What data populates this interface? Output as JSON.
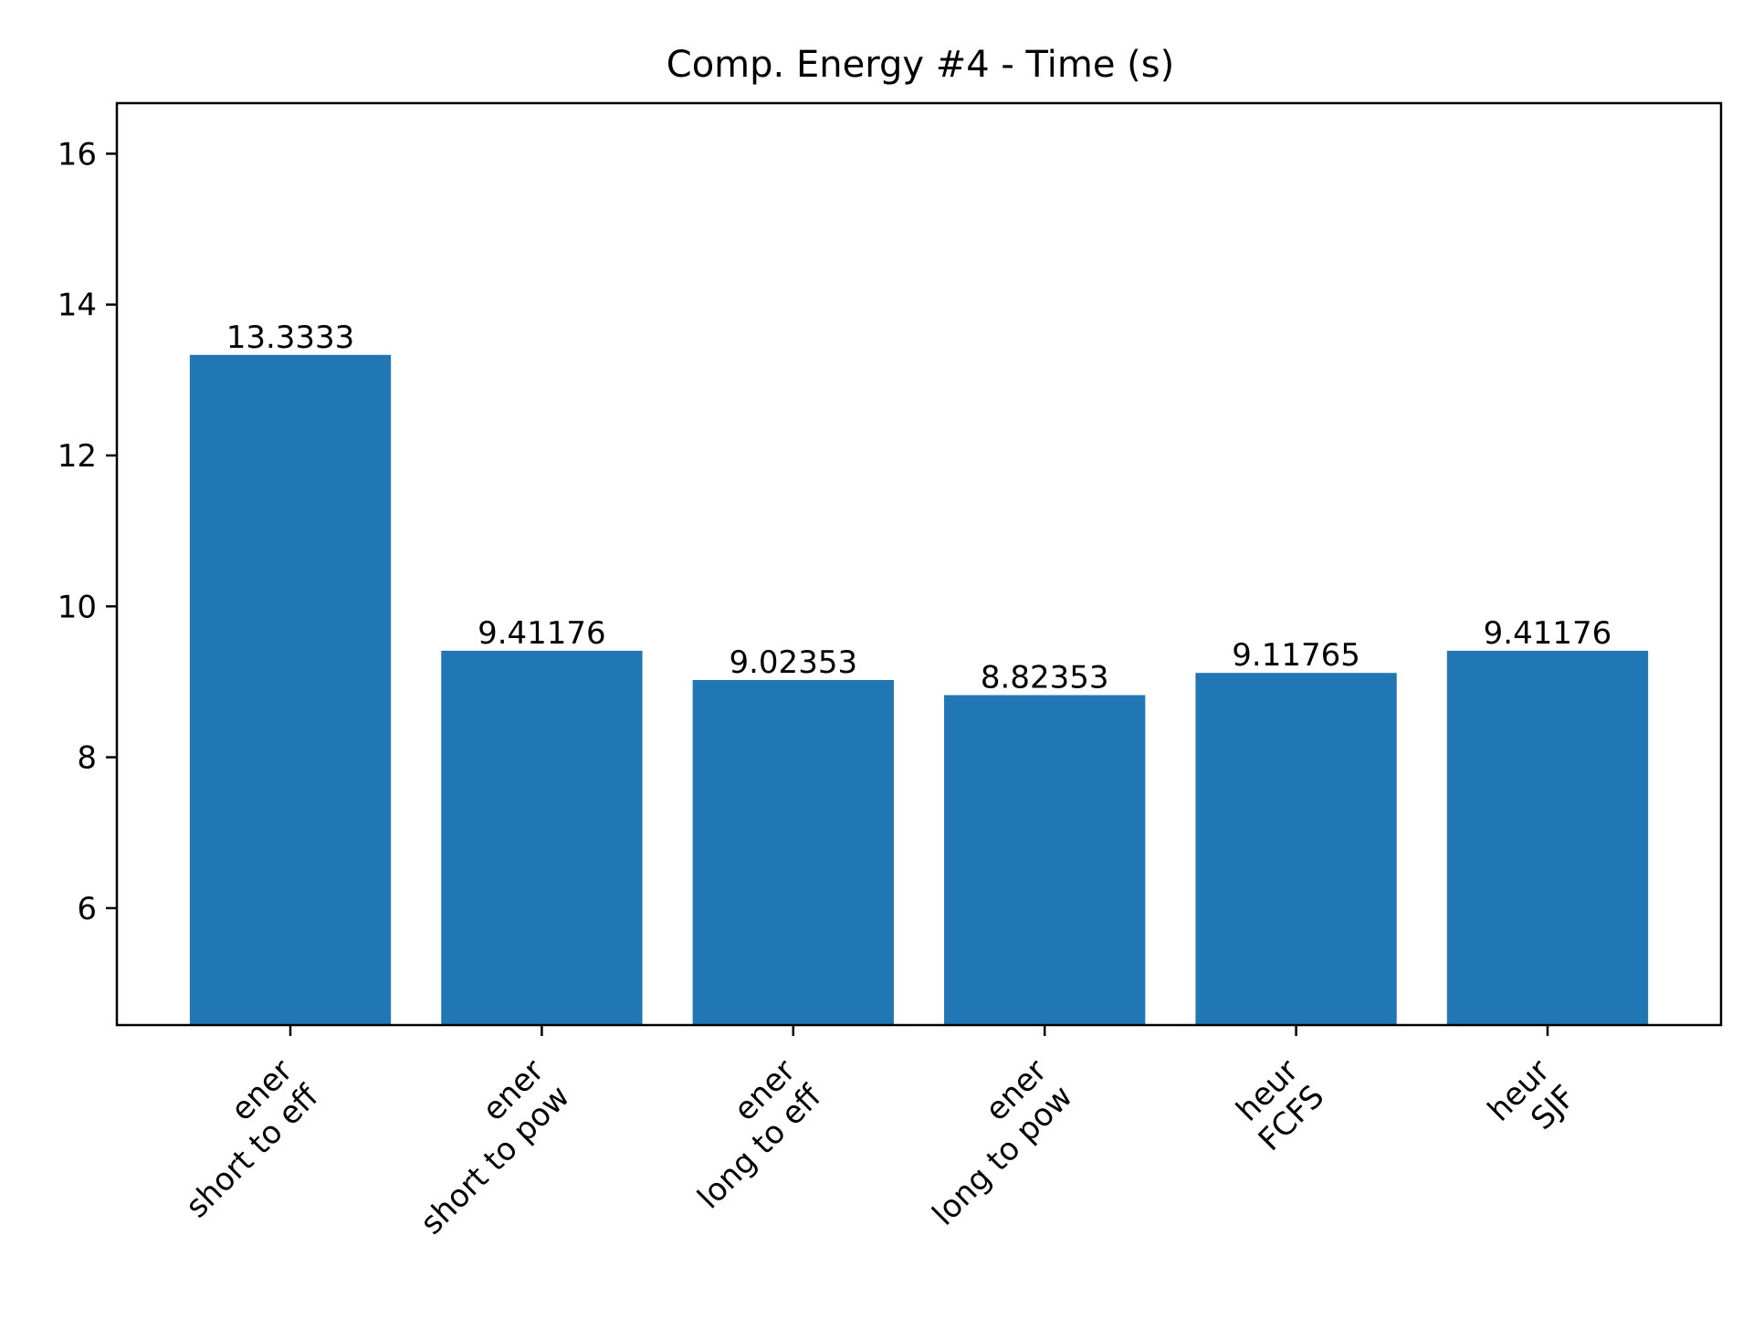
{
  "chart_data": {
    "type": "bar",
    "title": "Comp. Energy #4 - Time (s)",
    "xlabel": "",
    "ylabel": "",
    "categories": [
      [
        "ener",
        "short to eff"
      ],
      [
        "ener",
        "short to pow"
      ],
      [
        "ener",
        "long to eff"
      ],
      [
        "ener",
        "long to pow"
      ],
      [
        "heur",
        "FCFS"
      ],
      [
        "heur",
        "SJF"
      ]
    ],
    "values": [
      13.3333,
      9.41176,
      9.02353,
      8.82353,
      9.11765,
      9.41176
    ],
    "value_labels": [
      "13.3333",
      "9.41176",
      "9.02353",
      "8.82353",
      "9.11765",
      "9.41176"
    ],
    "ylim": [
      4.45,
      16.67
    ],
    "yticks": [
      6,
      8,
      10,
      12,
      14,
      16
    ],
    "grid": false,
    "legend": "none",
    "tick_label_rotation_deg": 45,
    "colors": {
      "bar": "#2077b4",
      "axes": "#000000",
      "background": "#ffffff"
    }
  }
}
